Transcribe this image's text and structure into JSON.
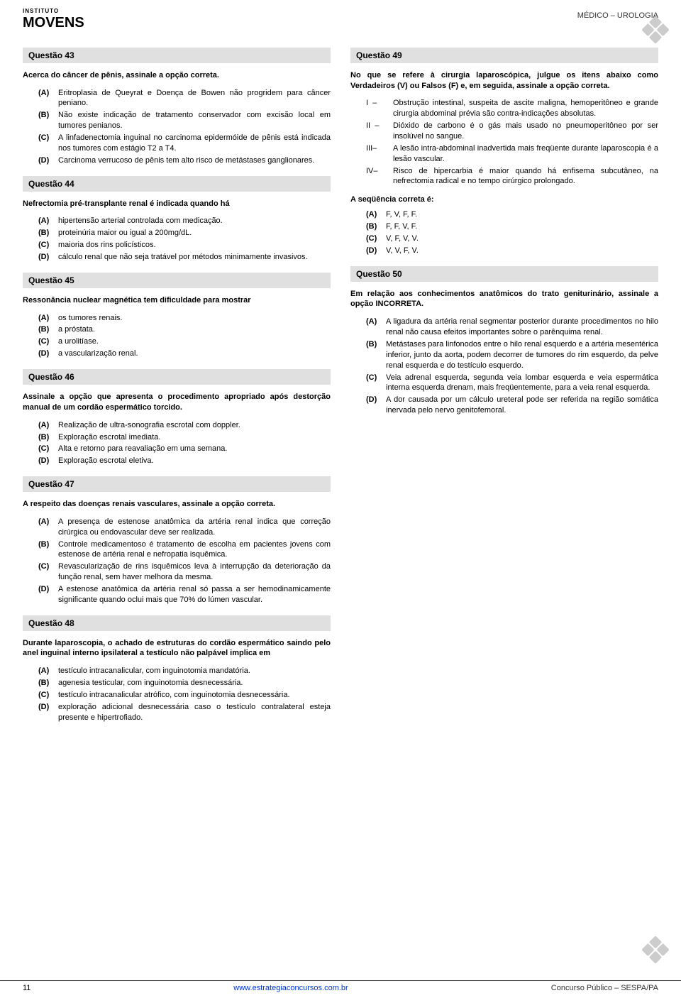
{
  "header": {
    "logo_line1": "INSTITUTO",
    "logo_line2": "MOVENS",
    "right_text": "MÉDICO – UROLOGIA"
  },
  "footer": {
    "page_number": "11",
    "url": "www.estrategiaconcursos.com.br",
    "right": "Concurso Público – SESPA/PA"
  },
  "q43": {
    "title": "Questão 43",
    "stem": "Acerca do câncer de pênis, assinale a opção correta.",
    "A": "Eritroplasia de Queyrat e Doença de Bowen não progridem para câncer peniano.",
    "B": "Não existe indicação de tratamento conservador com excisão local em tumores penianos.",
    "C": "A linfadenectomia inguinal no carcinoma epidermóide de pênis está indicada nos tumores com estágio T2 a T4.",
    "D": "Carcinoma verrucoso de pênis tem alto risco de metástases ganglionares."
  },
  "q44": {
    "title": "Questão 44",
    "stem": "Nefrectomia pré-transplante renal é indicada quando há",
    "A": "hipertensão arterial controlada com medicação.",
    "B": "proteinúria maior ou igual a 200mg/dL.",
    "C": "maioria dos rins policísticos.",
    "D": "cálculo renal que não seja tratável por métodos minimamente invasivos."
  },
  "q45": {
    "title": "Questão 45",
    "stem": "Ressonância nuclear magnética tem dificuldade para mostrar",
    "A": "os tumores renais.",
    "B": "a próstata.",
    "C": "a urolitíase.",
    "D": "a vascularização renal."
  },
  "q46": {
    "title": "Questão 46",
    "stem": "Assinale a opção que apresenta o procedimento apropriado após destorção manual de um cordão espermático torcido.",
    "A": "Realização de ultra-sonografia escrotal com doppler.",
    "B": "Exploração escrotal imediata.",
    "C": "Alta e retorno para reavaliação em uma semana.",
    "D": "Exploração escrotal eletiva."
  },
  "q47": {
    "title": "Questão 47",
    "stem": "A respeito das doenças renais vasculares, assinale a opção correta.",
    "A": "A presença de estenose anatômica da artéria renal indica que correção cirúrgica ou endovascular deve ser realizada.",
    "B": "Controle medicamentoso é tratamento de escolha em pacientes jovens com estenose de artéria renal e nefropatia isquêmica.",
    "C": "Revascularização de rins isquêmicos leva à interrupção da deterioração da função renal, sem haver melhora da mesma.",
    "D": "A estenose anatômica da artéria renal só passa a ser hemodinamicamente significante quando oclui mais que 70% do lúmen vascular."
  },
  "q48": {
    "title": "Questão 48",
    "stem": "Durante laparoscopia, o achado de estruturas do cordão espermático saindo pelo anel inguinal interno ipsilateral a testículo não palpável implica em",
    "A": "testículo intracanalicular, com inguinotomia mandatória.",
    "B": "agenesia testicular, com inguinotomia desnecessária.",
    "C": "testículo intracanalicular atrófico, com inguinotomia desnecessária.",
    "D": "exploração adicional desnecessária caso o testículo contralateral esteja presente e hipertrofiado."
  },
  "q49": {
    "title": "Questão 49",
    "stem": "No que se refere à cirurgia laparoscópica, julgue os itens abaixo como Verdadeiros (V) ou Falsos (F) e, em seguida, assinale a opção correta.",
    "I": "Obstrução intestinal, suspeita de ascite maligna, hemoperitôneo e grande cirurgia abdominal prévia são contra-indicações absolutas.",
    "II": "Dióxido de carbono é o gás mais usado no pneumoperitôneo por ser insolúvel no sangue.",
    "III": "A lesão intra-abdominal inadvertida mais freqüente durante laparoscopia é a lesão vascular.",
    "IV": "Risco de hipercarbia é maior quando há enfisema subcutâneo, na nefrectomia radical e no tempo cirúrgico prolongado.",
    "subhead": "A seqüência correta é:",
    "A": "F, V, F, F.",
    "B": "F, F, V, F.",
    "C": "V, F, V, V.",
    "D": "V, V, F, V."
  },
  "q50": {
    "title": "Questão 50",
    "stem": "Em relação aos conhecimentos anatômicos do trato geniturinário, assinale a opção INCORRETA.",
    "A": "A ligadura da artéria renal segmentar posterior durante procedimentos no hilo renal não causa efeitos importantes sobre o parênquima renal.",
    "B": "Metástases para linfonodos entre o hilo renal esquerdo e a artéria mesentérica inferior, junto da aorta, podem decorrer de tumores do rim esquerdo, da pelve renal esquerda e do testículo esquerdo.",
    "C": "Veia adrenal esquerda, segunda veia lombar esquerda e veia espermática interna esquerda drenam, mais freqüentemente, para a veia renal esquerda.",
    "D": "A dor causada por um cálculo ureteral pode ser referida na região somática inervada pelo nervo genitofemoral."
  }
}
